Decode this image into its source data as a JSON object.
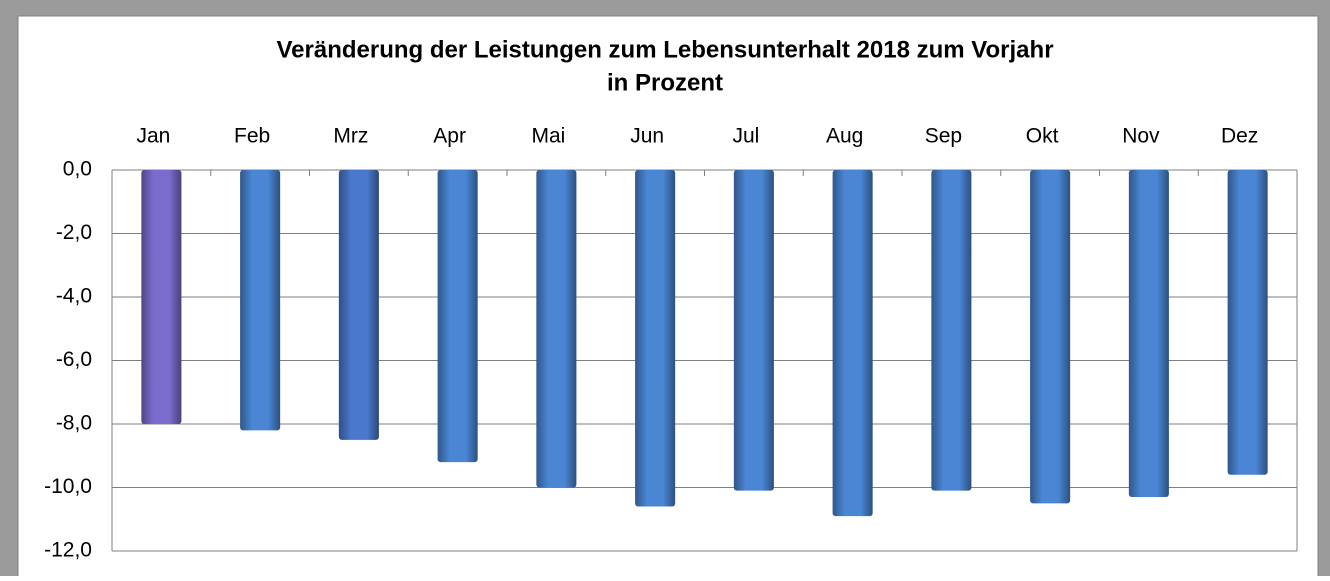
{
  "chart_data": {
    "type": "bar",
    "title": "Veränderung der Leistungen zum Lebensunterhalt 2018 zum Vorjahr",
    "subtitle": "in Prozent",
    "categories": [
      "Jan",
      "Feb",
      "Mrz",
      "Apr",
      "Mai",
      "Jun",
      "Jul",
      "Aug",
      "Sep",
      "Okt",
      "Nov",
      "Dez"
    ],
    "values": [
      -8.0,
      -8.2,
      -8.5,
      -9.2,
      -10.0,
      -10.6,
      -10.1,
      -10.9,
      -10.1,
      -10.5,
      -10.3,
      -9.6
    ],
    "colors": [
      "#7a6ccc",
      "#4a86d4",
      "#4a78cc",
      "#4a86d4",
      "#4a86d4",
      "#4a86d4",
      "#4a86d4",
      "#4a86d4",
      "#4a86d4",
      "#4a86d4",
      "#4a86d4",
      "#4a86d4"
    ],
    "ylim": [
      -12,
      0
    ],
    "yticks": [
      {
        "value": 0,
        "label": "0,0"
      },
      {
        "value": -2,
        "label": "-2,0"
      },
      {
        "value": -4,
        "label": "-4,0"
      },
      {
        "value": -6,
        "label": "-6,0"
      },
      {
        "value": -8,
        "label": "-8,0"
      },
      {
        "value": -10,
        "label": "-10,0"
      },
      {
        "value": -12,
        "label": "-12,0"
      }
    ],
    "grid": true
  }
}
